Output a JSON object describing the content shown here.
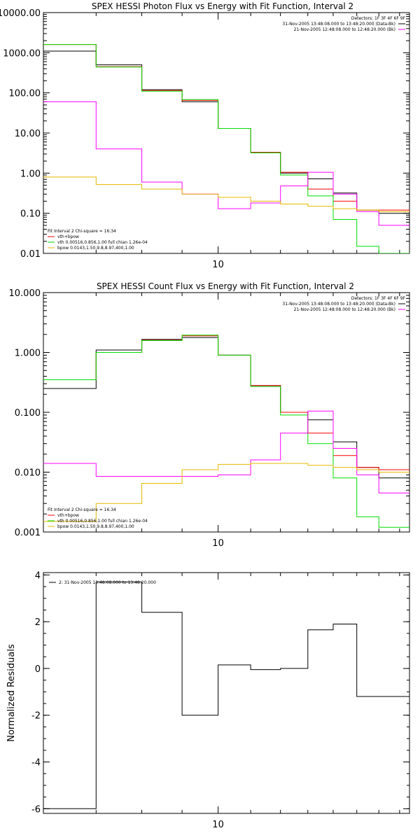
{
  "chart_data": [
    {
      "type": "line",
      "title": "SPEX HESSI Photon Flux vs Energy with Fit Function, Interval 2",
      "ylabel": "",
      "xlabel": "",
      "xscale": "log",
      "yscale": "log",
      "xlim": [
        6.0,
        17.5
      ],
      "ylim": [
        0.01,
        10000
      ],
      "x_ticks": [
        {
          "value": 10,
          "label": "10"
        }
      ],
      "y_ticks": [
        {
          "value": 10000,
          "label": "10000.00"
        },
        {
          "value": 1000,
          "label": "1000.00"
        },
        {
          "value": 100,
          "label": "100.00"
        },
        {
          "value": 10,
          "label": "10.00"
        },
        {
          "value": 1,
          "label": "1.00"
        },
        {
          "value": 0.1,
          "label": "0.10"
        },
        {
          "value": 0.01,
          "label": "0.01"
        }
      ],
      "bin_edges": [
        6.0,
        7.0,
        8.0,
        9.0,
        10.0,
        11.0,
        12.0,
        13.0,
        14.0,
        15.0,
        16.0,
        17.5
      ],
      "series": [
        {
          "key": "data",
          "color": "#000000",
          "values": [
            1100,
            500,
            120,
            60,
            13,
            3.3,
            1.0,
            0.72,
            0.32,
            0.12,
            0.1
          ]
        },
        {
          "key": "total",
          "color": "#ff0000",
          "values": [
            1600,
            450,
            115,
            65,
            13,
            3.3,
            1.05,
            0.4,
            0.2,
            0.12,
            0.12
          ]
        },
        {
          "key": "vth",
          "color": "#00dd00",
          "values": [
            1600,
            440,
            110,
            68,
            13,
            3.2,
            0.9,
            0.27,
            0.07,
            0.015,
            0.01
          ]
        },
        {
          "key": "magenta",
          "color": "#ff00ff",
          "values": [
            60,
            4.0,
            0.6,
            0.3,
            0.13,
            0.18,
            0.48,
            1.05,
            0.3,
            0.11,
            0.05
          ]
        },
        {
          "key": "bpow",
          "color": "#e6b800",
          "values": [
            0.8,
            0.52,
            0.4,
            0.3,
            0.25,
            0.2,
            0.17,
            0.15,
            0.13,
            0.12,
            0.11
          ]
        }
      ],
      "legend_top": {
        "placement": "top-right",
        "header": "Detectors: 1F 3F 4F 6F 9F",
        "lines": [
          {
            "text": "31-Nov-2005 13:48:08.000 to 13:48:20.000 (Data-Bk)",
            "color": "#000000"
          },
          {
            "text": "21-Nov-2005 12:48:08.000 to 12:48:20.000 (Bk)",
            "color": "#ff00ff"
          }
        ]
      },
      "legend_bottom": {
        "placement": "bottom-left",
        "header": "Fit Interval 2   Chi-square = 16.34",
        "lines": [
          {
            "text": "vth+bpow",
            "color": "#ff0000"
          },
          {
            "text": "vth 0.00516,0.856,1.00  full chian 1.26e-04",
            "color": "#00dd00"
          },
          {
            "text": "bpow 0.0143,1.50,9.8,8.97,400,1.00",
            "color": "#e6b800"
          }
        ]
      }
    },
    {
      "type": "line",
      "title": "SPEX HESSI Count Flux vs Energy with Fit Function, Interval 2",
      "ylabel": "",
      "xlabel": "",
      "xscale": "log",
      "yscale": "log",
      "xlim": [
        6.0,
        17.5
      ],
      "ylim": [
        0.001,
        10
      ],
      "x_ticks": [
        {
          "value": 10,
          "label": "10"
        }
      ],
      "y_ticks": [
        {
          "value": 10,
          "label": "10.000"
        },
        {
          "value": 1,
          "label": "1.000"
        },
        {
          "value": 0.1,
          "label": "0.100"
        },
        {
          "value": 0.01,
          "label": "0.010"
        },
        {
          "value": 0.001,
          "label": "0.001"
        }
      ],
      "bin_edges": [
        6.0,
        7.0,
        8.0,
        9.0,
        10.0,
        11.0,
        12.0,
        13.0,
        14.0,
        15.0,
        16.0,
        17.5
      ],
      "series": [
        {
          "key": "data",
          "color": "#000000",
          "values": [
            0.25,
            1.1,
            1.65,
            1.78,
            0.9,
            0.28,
            0.1,
            0.075,
            0.032,
            0.012,
            0.008
          ]
        },
        {
          "key": "total",
          "color": "#ff0000",
          "values": [
            0.35,
            1.0,
            1.6,
            1.9,
            0.9,
            0.28,
            0.1,
            0.045,
            0.019,
            0.012,
            0.011
          ]
        },
        {
          "key": "vth",
          "color": "#00dd00",
          "values": [
            0.35,
            1.0,
            1.58,
            1.95,
            0.9,
            0.27,
            0.09,
            0.03,
            0.008,
            0.0018,
            0.0012
          ]
        },
        {
          "key": "magenta",
          "color": "#ff00ff",
          "values": [
            0.014,
            0.0085,
            0.0085,
            0.0085,
            0.009,
            0.016,
            0.045,
            0.105,
            0.025,
            0.009,
            0.0045
          ]
        },
        {
          "key": "bpow",
          "color": "#e6b800",
          "values": [
            0.0015,
            0.003,
            0.0065,
            0.011,
            0.0135,
            0.014,
            0.014,
            0.013,
            0.012,
            0.011,
            0.01
          ]
        }
      ],
      "legend_top": {
        "placement": "top-right",
        "header": "Detectors: 1F 3F 4F 6F 9F",
        "lines": [
          {
            "text": "31-Nov-2005 13:48:08.000 to 13:48:20.000 (Data-Bk)",
            "color": "#000000"
          },
          {
            "text": "21-Nov-2005 12:48:08.000 to 12:48:20.000 (Bk)",
            "color": "#ff00ff"
          }
        ]
      },
      "legend_bottom": {
        "placement": "bottom-left",
        "header": "Fit Interval 2   Chi-square = 16.34",
        "lines": [
          {
            "text": "vth+bpow",
            "color": "#ff0000"
          },
          {
            "text": "vth 0.00516,0.856,1.00  full chian 1.26e-04",
            "color": "#00dd00"
          },
          {
            "text": "bpow 0.0143,1.50,9.8,8.97,400,1.00",
            "color": "#e6b800"
          }
        ]
      }
    },
    {
      "type": "line",
      "title": "",
      "ylabel": "Normalized Residuals",
      "xlabel": "",
      "xscale": "log",
      "yscale": "linear",
      "xlim": [
        6.0,
        17.5
      ],
      "ylim": [
        -6.2,
        4.1
      ],
      "x_ticks": [
        {
          "value": 10,
          "label": "10"
        }
      ],
      "y_ticks": [
        {
          "value": 4,
          "label": "4"
        },
        {
          "value": 2,
          "label": "2"
        },
        {
          "value": 0,
          "label": "0"
        },
        {
          "value": -2,
          "label": "-2"
        },
        {
          "value": -4,
          "label": "-4"
        },
        {
          "value": -6,
          "label": "-6"
        }
      ],
      "bin_edges": [
        6.0,
        7.0,
        8.0,
        9.0,
        10.0,
        11.0,
        12.0,
        13.0,
        14.0,
        15.0,
        16.0,
        17.5
      ],
      "series": [
        {
          "key": "residuals",
          "color": "#000000",
          "values": [
            -6.0,
            3.7,
            2.4,
            -2.0,
            0.15,
            -0.05,
            0.0,
            1.65,
            1.9,
            -1.2,
            -1.2
          ]
        }
      ],
      "legend_top": {
        "placement": "top-left",
        "header": "",
        "lines": [
          {
            "text": "2: 31-Nov-2005 13:48:08.000 to 13:48:20.000",
            "color": "#000000"
          }
        ]
      }
    }
  ]
}
